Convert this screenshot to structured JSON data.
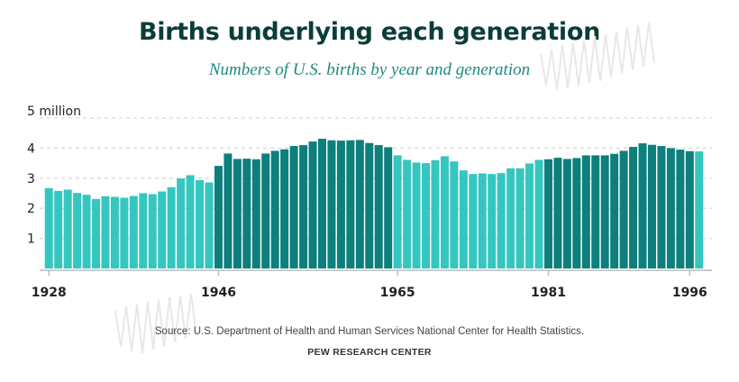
{
  "header": {
    "title": "Births underlying each generation",
    "subtitle": "Numbers of U.S. births by year and generation"
  },
  "footer": {
    "source": "Source: U.S. Department of Health and Human Services National Center for Health Statistics.",
    "credit": "PEW RESEARCH CENTER"
  },
  "colors": {
    "light": "#35c6c0",
    "dark": "#0d7f7c",
    "grid": "#d9d9d9",
    "axis": "#bbbbbb"
  },
  "chart_data": {
    "type": "bar",
    "title": "Births underlying each generation",
    "subtitle": "Numbers of U.S. births by year and generation",
    "xlabel": "",
    "ylabel": "",
    "ylim": [
      0,
      5
    ],
    "y_ticks": [
      {
        "value": 1,
        "label": "1"
      },
      {
        "value": 2,
        "label": "2"
      },
      {
        "value": 3,
        "label": "3"
      },
      {
        "value": 4,
        "label": "4"
      },
      {
        "value": 5,
        "label": "5 million"
      }
    ],
    "x_tick_labels": [
      "1928",
      "1946",
      "1965",
      "1981",
      "1996"
    ],
    "start_year": 1928,
    "color_groups": [
      {
        "from": 1928,
        "to": 1945,
        "shade": "light"
      },
      {
        "from": 1946,
        "to": 1964,
        "shade": "dark"
      },
      {
        "from": 1965,
        "to": 1980,
        "shade": "light"
      },
      {
        "from": 1981,
        "to": 1996,
        "shade": "dark"
      }
    ],
    "units": "millions of births",
    "values": [
      2.67,
      2.58,
      2.62,
      2.51,
      2.45,
      2.31,
      2.4,
      2.38,
      2.35,
      2.41,
      2.5,
      2.47,
      2.56,
      2.7,
      2.99,
      3.1,
      2.94,
      2.86,
      3.41,
      3.82,
      3.64,
      3.65,
      3.63,
      3.82,
      3.91,
      3.96,
      4.07,
      4.1,
      4.22,
      4.31,
      4.26,
      4.25,
      4.26,
      4.27,
      4.17,
      4.1,
      4.03,
      3.76,
      3.61,
      3.52,
      3.5,
      3.6,
      3.73,
      3.56,
      3.26,
      3.14,
      3.16,
      3.14,
      3.17,
      3.33,
      3.33,
      3.49,
      3.61,
      3.63,
      3.68,
      3.64,
      3.67,
      3.76,
      3.76,
      3.76,
      3.81,
      3.91,
      4.04,
      4.16,
      4.11,
      4.07,
      4.0,
      3.95,
      3.9,
      3.89
    ]
  }
}
